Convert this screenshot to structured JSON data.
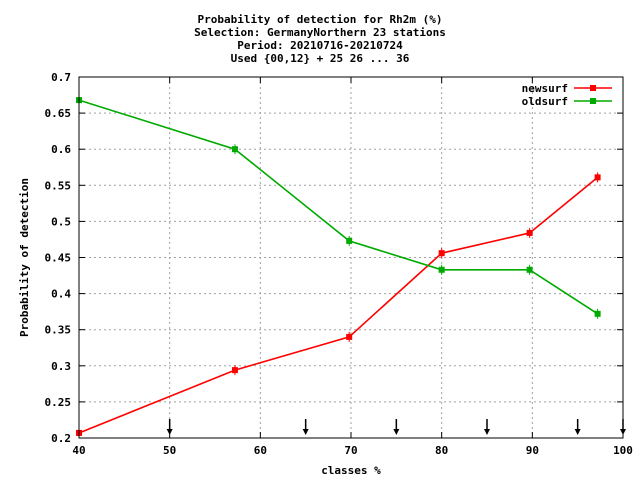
{
  "chart_data": {
    "type": "line",
    "title_lines": [
      "Probability of detection  for Rh2m (%)",
      "Selection: GermanyNorthern     23 stations",
      "Period: 20210716-20210724",
      "Used {00,12} + 25 26 ... 36"
    ],
    "xlabel": "classes %",
    "ylabel": "Probability of detection",
    "xlim": [
      40,
      100
    ],
    "ylim": [
      0.2,
      0.7
    ],
    "xticks": [
      40,
      50,
      60,
      70,
      80,
      90,
      100
    ],
    "yticks": [
      0.2,
      0.25,
      0.3,
      0.35,
      0.4,
      0.45,
      0.5,
      0.55,
      0.6,
      0.65,
      0.7
    ],
    "ytick_labels": [
      "0.2",
      "0.25",
      "0.3",
      "0.35",
      "0.4",
      "0.45",
      "0.5",
      "0.55",
      "0.6",
      "0.65",
      "0.7"
    ],
    "grid": true,
    "legend_position": "top-right",
    "series": [
      {
        "name": "newsurf",
        "color": "#ff0000",
        "x": [
          40,
          57.2,
          69.8,
          80,
          89.7,
          97.2
        ],
        "y": [
          0.207,
          0.294,
          0.34,
          0.456,
          0.484,
          0.561
        ]
      },
      {
        "name": "oldsurf",
        "color": "#00aa00",
        "x": [
          40,
          57.2,
          69.8,
          80,
          89.7,
          97.2
        ],
        "y": [
          0.668,
          0.6,
          0.473,
          0.433,
          0.433,
          0.372
        ]
      }
    ],
    "arrow_markers_x": [
      50,
      65,
      75,
      85,
      95,
      100
    ]
  }
}
